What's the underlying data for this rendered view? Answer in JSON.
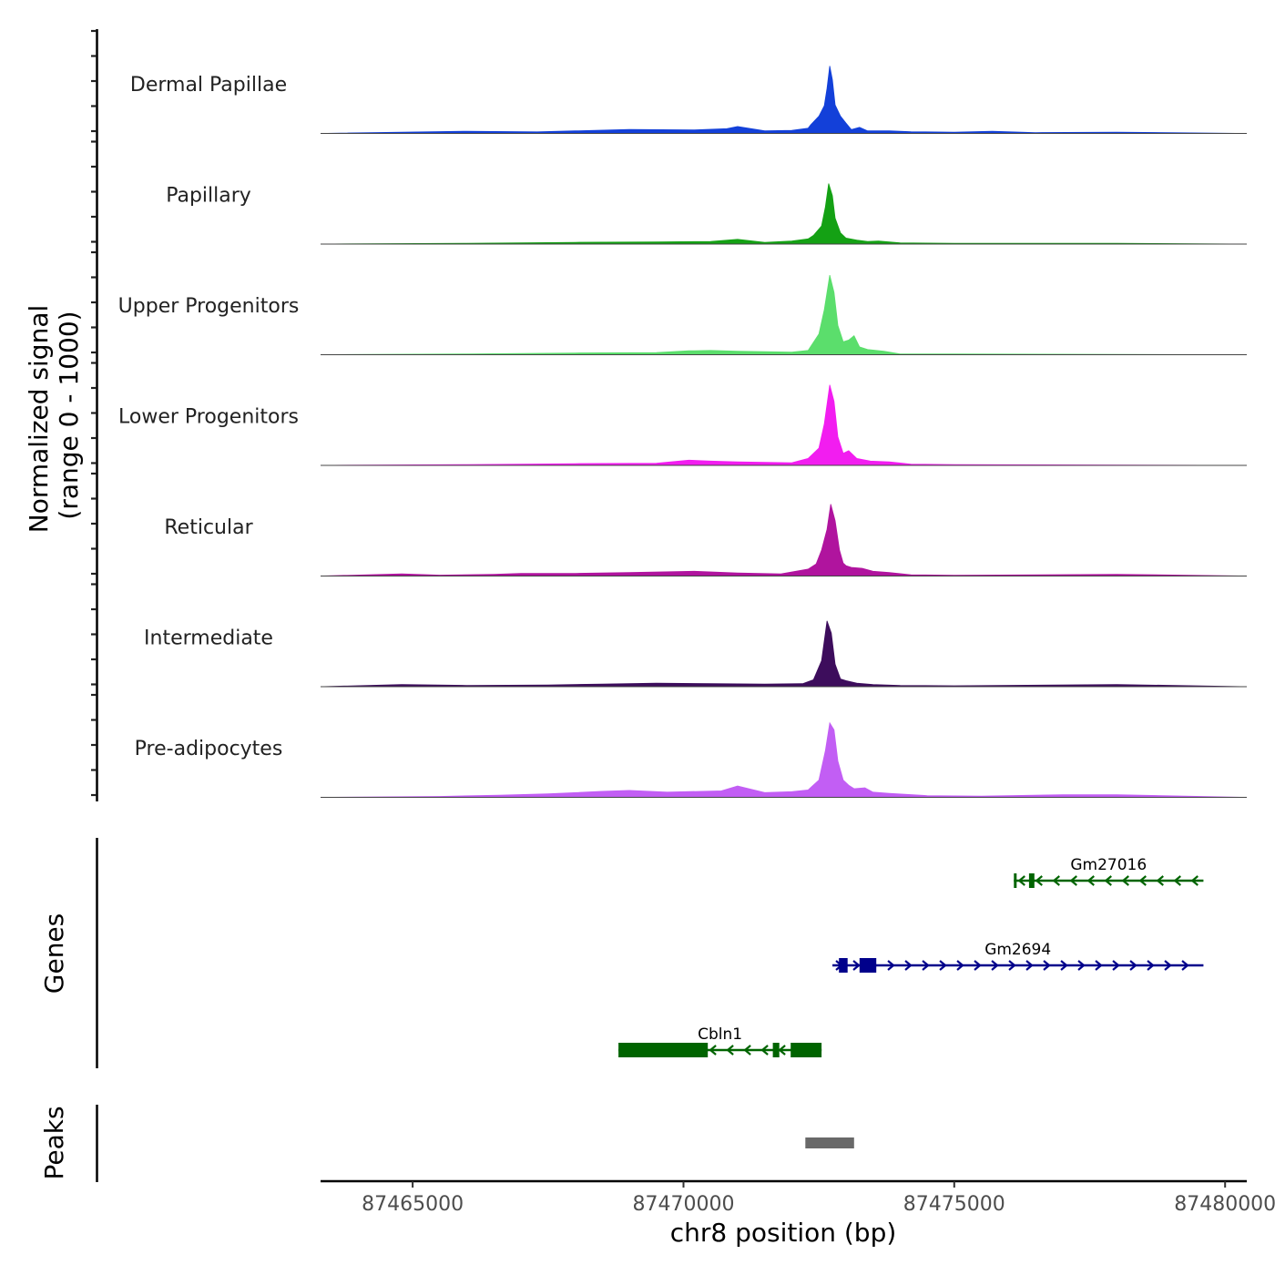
{
  "chart_data": {
    "type": "area",
    "title": "",
    "xlabel": "chr8 position (bp)",
    "xlim": [
      87463300,
      87480400
    ],
    "x_ticks": [
      {
        "value": 87465000,
        "label": "87465000"
      },
      {
        "value": 87470000,
        "label": "87470000"
      },
      {
        "value": 87475000,
        "label": "87475000"
      },
      {
        "value": 87480000,
        "label": "87480000"
      }
    ],
    "coverage_ylabel_line1": "Normalized signal",
    "coverage_ylabel_line2": "(range 0 - 1000)",
    "ylim": [
      0,
      1000
    ],
    "genes_ylabel": "Genes",
    "peaks_ylabel": "Peaks",
    "tracks": [
      {
        "name": "Dermal Papillae",
        "color": "#1340d9",
        "peak_height": 780,
        "profile": [
          [
            87463300,
            0
          ],
          [
            87464800,
            15
          ],
          [
            87466000,
            25
          ],
          [
            87467300,
            18
          ],
          [
            87468000,
            30
          ],
          [
            87469000,
            45
          ],
          [
            87470200,
            40
          ],
          [
            87470800,
            55
          ],
          [
            87471000,
            80
          ],
          [
            87471500,
            30
          ],
          [
            87472000,
            35
          ],
          [
            87472300,
            60
          ],
          [
            87472350,
            100
          ],
          [
            87472500,
            200
          ],
          [
            87472600,
            320
          ],
          [
            87472650,
            520
          ],
          [
            87472700,
            780
          ],
          [
            87472750,
            620
          ],
          [
            87472800,
            330
          ],
          [
            87472900,
            200
          ],
          [
            87473000,
            120
          ],
          [
            87473100,
            45
          ],
          [
            87473250,
            70
          ],
          [
            87473400,
            30
          ],
          [
            87473800,
            30
          ],
          [
            87474200,
            20
          ],
          [
            87475000,
            15
          ],
          [
            87475700,
            25
          ],
          [
            87476500,
            10
          ],
          [
            87478000,
            15
          ],
          [
            87480400,
            0
          ]
        ]
      },
      {
        "name": "Papillary",
        "color": "#14a114",
        "peak_height": 700,
        "profile": [
          [
            87463300,
            0
          ],
          [
            87466000,
            10
          ],
          [
            87468000,
            20
          ],
          [
            87469500,
            25
          ],
          [
            87470500,
            30
          ],
          [
            87471000,
            55
          ],
          [
            87471500,
            20
          ],
          [
            87472000,
            35
          ],
          [
            87472300,
            60
          ],
          [
            87472400,
            100
          ],
          [
            87472550,
            210
          ],
          [
            87472620,
            430
          ],
          [
            87472680,
            700
          ],
          [
            87472750,
            560
          ],
          [
            87472800,
            300
          ],
          [
            87472900,
            130
          ],
          [
            87473000,
            70
          ],
          [
            87473200,
            45
          ],
          [
            87473400,
            30
          ],
          [
            87473600,
            35
          ],
          [
            87474000,
            15
          ],
          [
            87475000,
            8
          ],
          [
            87478000,
            10
          ],
          [
            87480400,
            0
          ]
        ]
      },
      {
        "name": "Upper Progenitors",
        "color": "#5bde6c",
        "peak_height": 920,
        "profile": [
          [
            87463300,
            0
          ],
          [
            87466000,
            10
          ],
          [
            87468000,
            20
          ],
          [
            87469500,
            25
          ],
          [
            87470100,
            45
          ],
          [
            87470500,
            50
          ],
          [
            87471000,
            40
          ],
          [
            87471500,
            35
          ],
          [
            87472000,
            30
          ],
          [
            87472300,
            50
          ],
          [
            87472500,
            240
          ],
          [
            87472600,
            520
          ],
          [
            87472700,
            920
          ],
          [
            87472780,
            720
          ],
          [
            87472850,
            340
          ],
          [
            87472950,
            150
          ],
          [
            87473050,
            170
          ],
          [
            87473150,
            220
          ],
          [
            87473250,
            90
          ],
          [
            87473400,
            60
          ],
          [
            87473700,
            40
          ],
          [
            87474000,
            10
          ],
          [
            87475000,
            8
          ],
          [
            87480400,
            0
          ]
        ]
      },
      {
        "name": "Lower Progenitors",
        "color": "#f21df0",
        "peak_height": 930,
        "profile": [
          [
            87463300,
            0
          ],
          [
            87466000,
            10
          ],
          [
            87468000,
            20
          ],
          [
            87469500,
            25
          ],
          [
            87470100,
            60
          ],
          [
            87470500,
            50
          ],
          [
            87471000,
            40
          ],
          [
            87471500,
            35
          ],
          [
            87472000,
            30
          ],
          [
            87472300,
            80
          ],
          [
            87472500,
            200
          ],
          [
            87472600,
            480
          ],
          [
            87472700,
            930
          ],
          [
            87472780,
            740
          ],
          [
            87472850,
            330
          ],
          [
            87472950,
            140
          ],
          [
            87473050,
            170
          ],
          [
            87473200,
            80
          ],
          [
            87473450,
            50
          ],
          [
            87473800,
            40
          ],
          [
            87474200,
            15
          ],
          [
            87475000,
            8
          ],
          [
            87480400,
            0
          ]
        ]
      },
      {
        "name": "Reticular",
        "color": "#b0149e",
        "peak_height": 830,
        "profile": [
          [
            87463300,
            0
          ],
          [
            87464800,
            25
          ],
          [
            87465500,
            10
          ],
          [
            87466500,
            20
          ],
          [
            87467000,
            30
          ],
          [
            87468000,
            30
          ],
          [
            87469000,
            40
          ],
          [
            87470200,
            55
          ],
          [
            87471000,
            35
          ],
          [
            87471800,
            25
          ],
          [
            87472300,
            80
          ],
          [
            87472450,
            140
          ],
          [
            87472550,
            300
          ],
          [
            87472650,
            540
          ],
          [
            87472720,
            830
          ],
          [
            87472800,
            640
          ],
          [
            87472880,
            300
          ],
          [
            87472950,
            150
          ],
          [
            87473000,
            120
          ],
          [
            87473100,
            100
          ],
          [
            87473300,
            90
          ],
          [
            87473500,
            55
          ],
          [
            87473800,
            40
          ],
          [
            87474200,
            15
          ],
          [
            87475000,
            8
          ],
          [
            87478000,
            20
          ],
          [
            87480400,
            0
          ]
        ]
      },
      {
        "name": "Intermediate",
        "color": "#3d0d5c",
        "peak_height": 760,
        "profile": [
          [
            87463300,
            0
          ],
          [
            87464800,
            25
          ],
          [
            87466000,
            15
          ],
          [
            87467500,
            20
          ],
          [
            87468500,
            30
          ],
          [
            87469500,
            40
          ],
          [
            87470500,
            35
          ],
          [
            87471500,
            30
          ],
          [
            87472200,
            35
          ],
          [
            87472400,
            80
          ],
          [
            87472550,
            300
          ],
          [
            87472650,
            760
          ],
          [
            87472730,
            620
          ],
          [
            87472800,
            260
          ],
          [
            87472900,
            90
          ],
          [
            87473000,
            70
          ],
          [
            87473200,
            40
          ],
          [
            87473500,
            25
          ],
          [
            87474000,
            15
          ],
          [
            87475000,
            10
          ],
          [
            87478000,
            25
          ],
          [
            87480400,
            0
          ]
        ]
      },
      {
        "name": "Pre-adipocytes",
        "color": "#c25ef4",
        "peak_height": 860,
        "profile": [
          [
            87463300,
            0
          ],
          [
            87465500,
            10
          ],
          [
            87466600,
            25
          ],
          [
            87467500,
            40
          ],
          [
            87468500,
            70
          ],
          [
            87469000,
            80
          ],
          [
            87469700,
            60
          ],
          [
            87470700,
            75
          ],
          [
            87471000,
            130
          ],
          [
            87471500,
            55
          ],
          [
            87472000,
            65
          ],
          [
            87472300,
            85
          ],
          [
            87472500,
            200
          ],
          [
            87472620,
            540
          ],
          [
            87472700,
            860
          ],
          [
            87472780,
            780
          ],
          [
            87472850,
            420
          ],
          [
            87472950,
            200
          ],
          [
            87473050,
            140
          ],
          [
            87473150,
            100
          ],
          [
            87473350,
            110
          ],
          [
            87473500,
            60
          ],
          [
            87473800,
            45
          ],
          [
            87474500,
            20
          ],
          [
            87475500,
            15
          ],
          [
            87477000,
            30
          ],
          [
            87478000,
            30
          ],
          [
            87480400,
            0
          ]
        ]
      }
    ],
    "genes": [
      {
        "name": "Gm27016",
        "color": "#006400",
        "strand": "-",
        "row": 0,
        "start": 87476100,
        "end": 87479600,
        "exons": [
          [
            87476100,
            87476150
          ],
          [
            87476380,
            87476480
          ]
        ]
      },
      {
        "name": "Gm2694",
        "color": "#00008b",
        "strand": "+",
        "row": 1,
        "start": 87472750,
        "end": 87479600,
        "exons": [
          [
            87472870,
            87473030
          ],
          [
            87473250,
            87473560
          ]
        ]
      },
      {
        "name": "Cbln1",
        "color": "#006400",
        "strand": "-",
        "row": 2,
        "start": 87468800,
        "end": 87472550,
        "exons": [
          [
            87468800,
            87470450
          ],
          [
            87471650,
            87471770
          ],
          [
            87471980,
            87472550
          ]
        ]
      }
    ],
    "peaks": [
      {
        "start": 87472250,
        "end": 87473150,
        "color": "#696969"
      }
    ]
  }
}
